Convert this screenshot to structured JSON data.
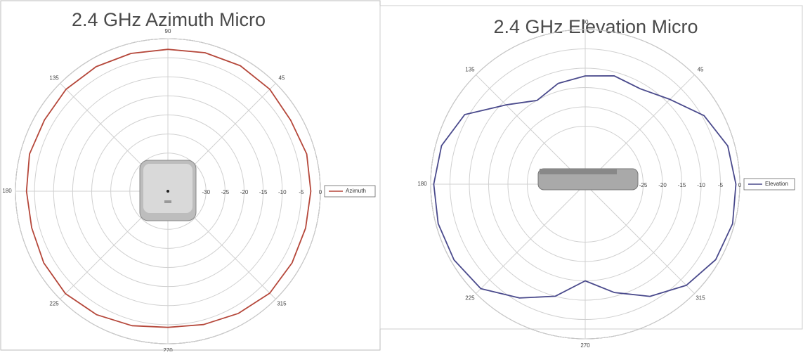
{
  "chart_data": [
    {
      "type": "polar",
      "title": "2.4 GHz Azimuth Micro",
      "x": [
        0,
        15,
        30,
        45,
        60,
        75,
        90,
        105,
        120,
        135,
        150,
        165,
        180,
        195,
        210,
        225,
        240,
        255,
        270,
        285,
        300,
        315,
        330,
        345
      ],
      "series": [
        {
          "name": "Azimuth",
          "color": "#b5473a",
          "values": [
            -2.5,
            -2.3,
            -2.8,
            -2.2,
            -2.0,
            -2.4,
            -2.8,
            -2.6,
            -2.3,
            -2.2,
            -2.6,
            -2.4,
            -2.9,
            -3.0,
            -2.4,
            -2.0,
            -2.6,
            -3.5,
            -4.3,
            -3.8,
            -3.0,
            -2.2,
            -2.4,
            -2.6
          ]
        }
      ],
      "rlim": [
        -40,
        0
      ],
      "rticks": [
        -30,
        -25,
        -20,
        -15,
        -10,
        -5,
        0
      ],
      "thetaticks": [
        45,
        90,
        135,
        180,
        225,
        270,
        315
      ],
      "grid": true,
      "legend": "right"
    },
    {
      "type": "polar",
      "title": "2.4 GHz Elevation Micro",
      "x": [
        0,
        15,
        30,
        45,
        60,
        75,
        90,
        105,
        120,
        135,
        150,
        165,
        180,
        195,
        210,
        225,
        240,
        255,
        270,
        285,
        300,
        315,
        330,
        345
      ],
      "series": [
        {
          "name": "Elevation",
          "color": "#4a4a8c",
          "values": [
            -1.0,
            -1.8,
            -4.5,
            -9,
            -11.5,
            -11,
            -12,
            -13,
            -15,
            -11,
            -4,
            -1.5,
            -0.8,
            -0.6,
            -0.8,
            -1.8,
            -6,
            -10,
            -15,
            -11,
            -6.5,
            -3,
            -1,
            -0.5
          ]
        }
      ],
      "rlim": [
        -40,
        0
      ],
      "rticks": [
        -25,
        -20,
        -15,
        -10,
        -5,
        0
      ],
      "thetaticks": [
        45,
        90,
        135,
        180,
        225,
        270,
        315
      ],
      "grid": true,
      "legend": "right"
    }
  ]
}
